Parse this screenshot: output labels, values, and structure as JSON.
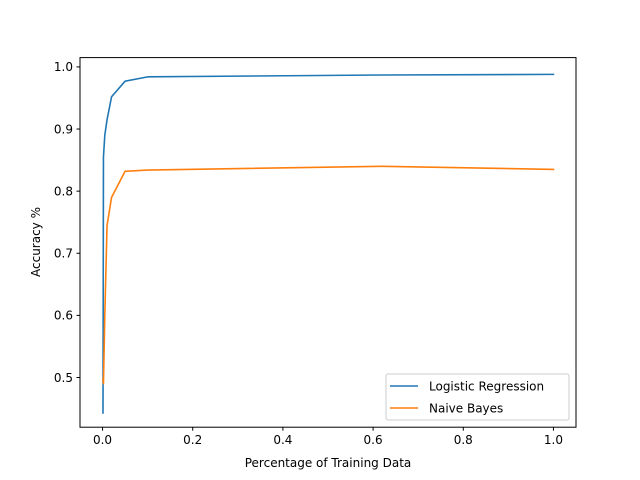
{
  "chart_data": {
    "type": "line",
    "title": "",
    "xlabel": "Percentage of Training Data",
    "ylabel": "Accuracy %",
    "xlim": [
      -0.05,
      1.05
    ],
    "ylim": [
      0.42,
      1.015
    ],
    "xticks": [
      0.0,
      0.2,
      0.4,
      0.6,
      0.8,
      1.0
    ],
    "xtick_labels": [
      "0.0",
      "0.2",
      "0.4",
      "0.6",
      "0.8",
      "1.0"
    ],
    "yticks": [
      0.5,
      0.6,
      0.7,
      0.8,
      0.9,
      1.0
    ],
    "ytick_labels": [
      "0.5",
      "0.6",
      "0.7",
      "0.8",
      "0.9",
      "1.0"
    ],
    "grid": false,
    "legend_position": "lower-right",
    "series": [
      {
        "name": "Logistic Regression",
        "color": "#1f77b4",
        "x": [
          0.001,
          0.002,
          0.005,
          0.01,
          0.02,
          0.05,
          0.1,
          0.62,
          1.0
        ],
        "y": [
          0.443,
          0.855,
          0.89,
          0.915,
          0.952,
          0.977,
          0.984,
          0.987,
          0.988
        ]
      },
      {
        "name": "Naive Bayes",
        "color": "#ff7f0e",
        "x": [
          0.001,
          0.002,
          0.005,
          0.01,
          0.02,
          0.05,
          0.1,
          0.62,
          1.0
        ],
        "y": [
          0.497,
          0.49,
          0.6,
          0.745,
          0.79,
          0.832,
          0.834,
          0.84,
          0.835
        ]
      }
    ]
  }
}
